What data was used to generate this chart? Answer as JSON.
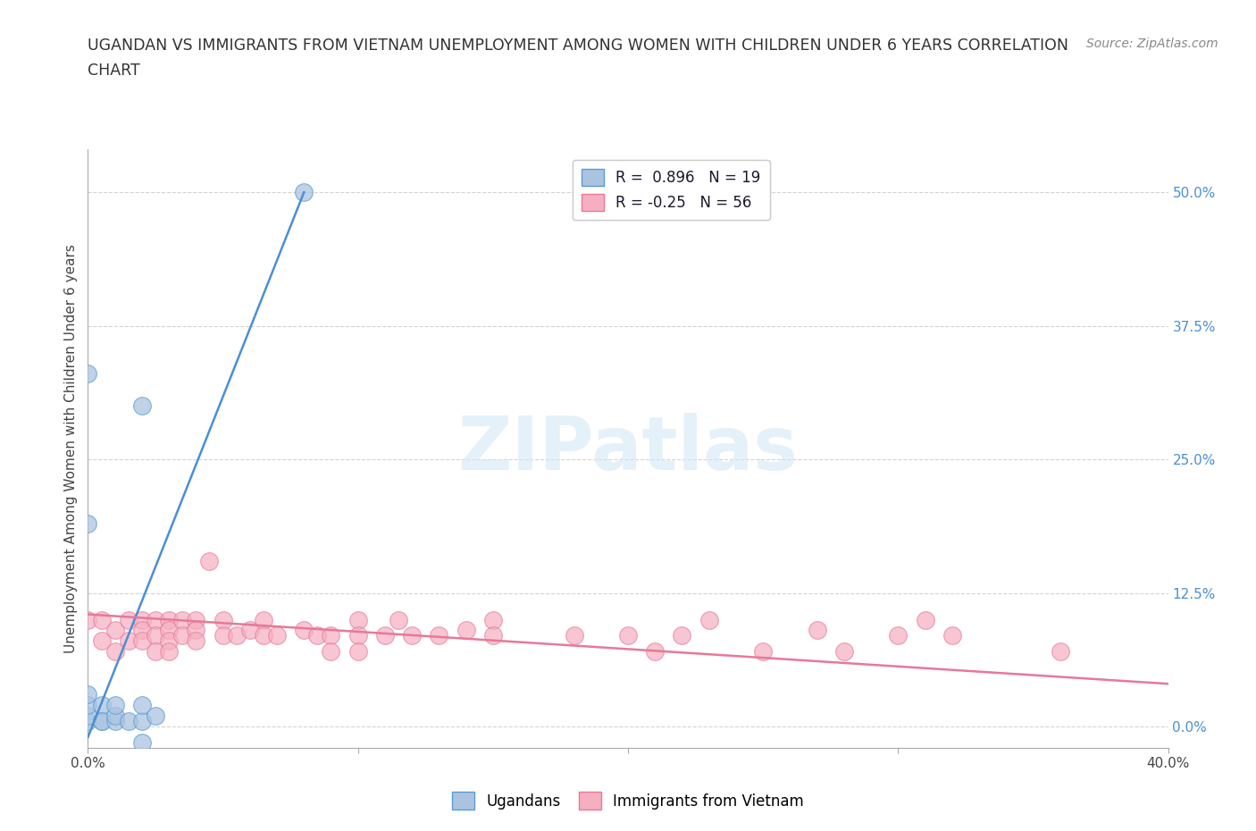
{
  "title_line1": "UGANDAN VS IMMIGRANTS FROM VIETNAM UNEMPLOYMENT AMONG WOMEN WITH CHILDREN UNDER 6 YEARS CORRELATION",
  "title_line2": "CHART",
  "source": "Source: ZipAtlas.com",
  "ylabel": "Unemployment Among Women with Children Under 6 years",
  "watermark": "ZIPatlas",
  "xlim": [
    0.0,
    0.4
  ],
  "ylim": [
    -0.02,
    0.54
  ],
  "xticks": [
    0.0,
    0.1,
    0.2,
    0.3,
    0.4
  ],
  "xtick_labels": [
    "0.0%",
    "",
    "",
    "",
    "40.0%"
  ],
  "ytick_labels": [
    "0.0%",
    "12.5%",
    "25.0%",
    "37.5%",
    "50.0%"
  ],
  "yticks": [
    0.0,
    0.125,
    0.25,
    0.375,
    0.5
  ],
  "ugandan_color": "#aac4e0",
  "vietnam_color": "#f5afc0",
  "ugandan_edge_color": "#5b9bd5",
  "vietnam_edge_color": "#e87898",
  "ugandan_line_color": "#4a8fd4",
  "vietnam_line_color": "#e87898",
  "ugandan_R": 0.896,
  "ugandan_N": 19,
  "vietnam_R": -0.25,
  "vietnam_N": 56,
  "ugandan_line": [
    [
      0.0,
      -0.01
    ],
    [
      0.08,
      0.5
    ]
  ],
  "vietnam_line": [
    [
      0.0,
      0.105
    ],
    [
      0.4,
      0.04
    ]
  ],
  "ugandan_points": [
    [
      0.0,
      0.005
    ],
    [
      0.0,
      0.01
    ],
    [
      0.0,
      0.02
    ],
    [
      0.0,
      0.03
    ],
    [
      0.005,
      0.005
    ],
    [
      0.005,
      0.02
    ],
    [
      0.005,
      0.005
    ],
    [
      0.01,
      0.005
    ],
    [
      0.01,
      0.01
    ],
    [
      0.01,
      0.02
    ],
    [
      0.015,
      0.005
    ],
    [
      0.02,
      0.005
    ],
    [
      0.02,
      0.02
    ],
    [
      0.025,
      0.01
    ],
    [
      0.0,
      0.19
    ],
    [
      0.0,
      0.33
    ],
    [
      0.08,
      0.5
    ],
    [
      0.02,
      0.3
    ],
    [
      0.02,
      -0.015
    ]
  ],
  "vietnam_points": [
    [
      0.0,
      0.1
    ],
    [
      0.005,
      0.1
    ],
    [
      0.005,
      0.08
    ],
    [
      0.01,
      0.09
    ],
    [
      0.01,
      0.07
    ],
    [
      0.015,
      0.1
    ],
    [
      0.015,
      0.08
    ],
    [
      0.02,
      0.1
    ],
    [
      0.02,
      0.09
    ],
    [
      0.02,
      0.08
    ],
    [
      0.025,
      0.1
    ],
    [
      0.025,
      0.085
    ],
    [
      0.025,
      0.07
    ],
    [
      0.03,
      0.1
    ],
    [
      0.03,
      0.09
    ],
    [
      0.03,
      0.08
    ],
    [
      0.03,
      0.07
    ],
    [
      0.035,
      0.1
    ],
    [
      0.035,
      0.085
    ],
    [
      0.04,
      0.1
    ],
    [
      0.04,
      0.09
    ],
    [
      0.04,
      0.08
    ],
    [
      0.045,
      0.155
    ],
    [
      0.05,
      0.1
    ],
    [
      0.05,
      0.085
    ],
    [
      0.055,
      0.085
    ],
    [
      0.06,
      0.09
    ],
    [
      0.065,
      0.1
    ],
    [
      0.065,
      0.085
    ],
    [
      0.07,
      0.085
    ],
    [
      0.08,
      0.09
    ],
    [
      0.085,
      0.085
    ],
    [
      0.09,
      0.085
    ],
    [
      0.09,
      0.07
    ],
    [
      0.1,
      0.1
    ],
    [
      0.1,
      0.085
    ],
    [
      0.1,
      0.07
    ],
    [
      0.11,
      0.085
    ],
    [
      0.115,
      0.1
    ],
    [
      0.12,
      0.085
    ],
    [
      0.13,
      0.085
    ],
    [
      0.14,
      0.09
    ],
    [
      0.15,
      0.1
    ],
    [
      0.15,
      0.085
    ],
    [
      0.18,
      0.085
    ],
    [
      0.2,
      0.085
    ],
    [
      0.21,
      0.07
    ],
    [
      0.22,
      0.085
    ],
    [
      0.23,
      0.1
    ],
    [
      0.25,
      0.07
    ],
    [
      0.27,
      0.09
    ],
    [
      0.28,
      0.07
    ],
    [
      0.3,
      0.085
    ],
    [
      0.31,
      0.1
    ],
    [
      0.32,
      0.085
    ],
    [
      0.36,
      0.07
    ]
  ]
}
